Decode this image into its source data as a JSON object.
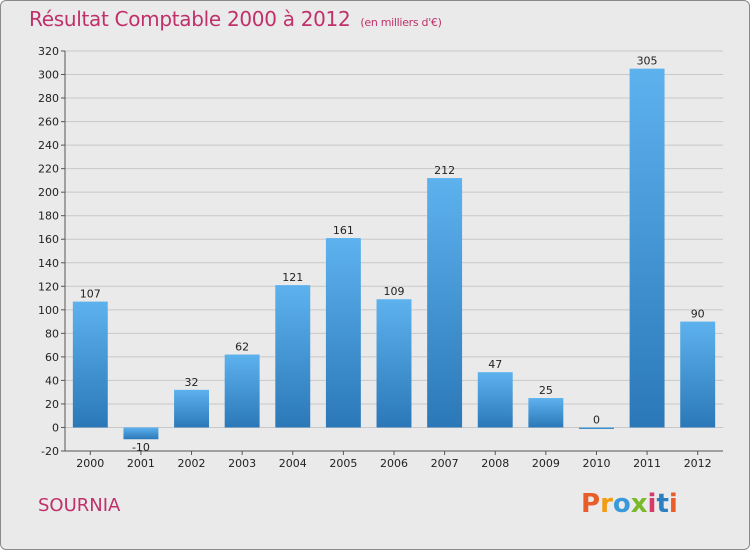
{
  "page": {
    "location": "SOURNIA",
    "logo_text": "Proxiti",
    "logo_colors": [
      "#e85d2a",
      "#f39c12",
      "#3a9ad9",
      "#7ab929",
      "#d63a6b",
      "#2c7fc1",
      "#e85d2a"
    ]
  },
  "chart_data": {
    "type": "bar",
    "title": "Résultat Comptable 2000 à 2012",
    "subtitle": "(en milliers d'€)",
    "xlabel": "",
    "ylabel": "",
    "categories": [
      "2000",
      "2001",
      "2002",
      "2003",
      "2004",
      "2005",
      "2006",
      "2007",
      "2008",
      "2009",
      "2010",
      "2011",
      "2012"
    ],
    "values": [
      107,
      -10,
      32,
      62,
      121,
      161,
      109,
      212,
      47,
      25,
      0,
      305,
      90
    ],
    "data_labels": [
      "107",
      "-10",
      "32",
      "62",
      "121",
      "161",
      "109",
      "212",
      "47",
      "25",
      "0",
      "305",
      "90"
    ],
    "ylim": [
      -20,
      320
    ],
    "yticks": [
      -20,
      0,
      20,
      40,
      60,
      80,
      100,
      120,
      140,
      160,
      180,
      200,
      220,
      240,
      260,
      280,
      300,
      320
    ],
    "grid": true,
    "bar_color": "#4fa3e3",
    "title_color": "#c0306a"
  }
}
